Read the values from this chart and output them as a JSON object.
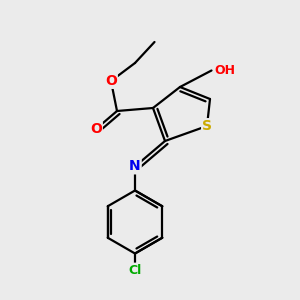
{
  "background_color": "#ebebeb",
  "atom_colors": {
    "O": "#ff0000",
    "N": "#0000ee",
    "S": "#ccaa00",
    "Cl": "#00aa00",
    "C": "#000000",
    "H": "#000000",
    "OH": "#ff0000"
  },
  "bond_color": "#000000",
  "bond_width": 1.6,
  "figsize": [
    3.0,
    3.0
  ],
  "dpi": 100,
  "xlim": [
    0,
    10
  ],
  "ylim": [
    0,
    10
  ]
}
